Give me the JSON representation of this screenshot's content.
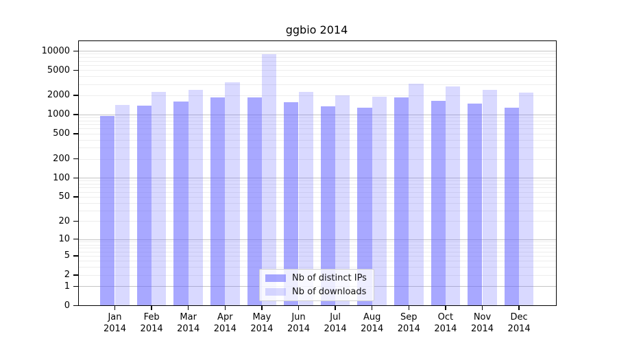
{
  "title": "ggbio 2014",
  "chart_data": {
    "type": "bar",
    "title": "ggbio 2014",
    "scale": "y = log10(value+1), labeled with 1-2-5 tick sequence",
    "grid": "on",
    "legend_position": "bottom-center-inside",
    "year": "2014",
    "categories": [
      "Jan",
      "Feb",
      "Mar",
      "Apr",
      "May",
      "Jun",
      "Jul",
      "Aug",
      "Sep",
      "Oct",
      "Nov",
      "Dec"
    ],
    "x_tick_labels": [
      "Jan 2014",
      "Feb 2014",
      "Mar 2014",
      "Apr 2014",
      "May 2014",
      "Jun 2014",
      "Jul 2014",
      "Aug 2014",
      "Sep 2014",
      "Oct 2014",
      "Nov 2014",
      "Dec 2014"
    ],
    "y_ticks": [
      0,
      1,
      2,
      5,
      10,
      20,
      50,
      100,
      200,
      500,
      1000,
      2000,
      5000,
      10000
    ],
    "ylim": [
      0,
      12000
    ],
    "series": [
      {
        "name": "Nb of distinct IPs",
        "color": "rgba(102,102,255,0.57)",
        "values": [
          950,
          1380,
          1590,
          1840,
          1870,
          1560,
          1360,
          1270,
          1880,
          1650,
          1470,
          1290
        ]
      },
      {
        "name": "Nb of downloads",
        "color": "rgba(102,102,255,0.25)",
        "values": [
          1430,
          2260,
          2450,
          3200,
          8850,
          2260,
          2000,
          1900,
          3020,
          2780,
          2460,
          2200
        ]
      }
    ]
  },
  "colors": {
    "bar_dark": "rgba(102,102,255,0.57)",
    "bar_light": "rgba(102,102,255,0.25)",
    "grid_major": "#c4c4c4",
    "grid_minor": "#ededed",
    "frame": "#000000",
    "background": "#ffffff"
  }
}
